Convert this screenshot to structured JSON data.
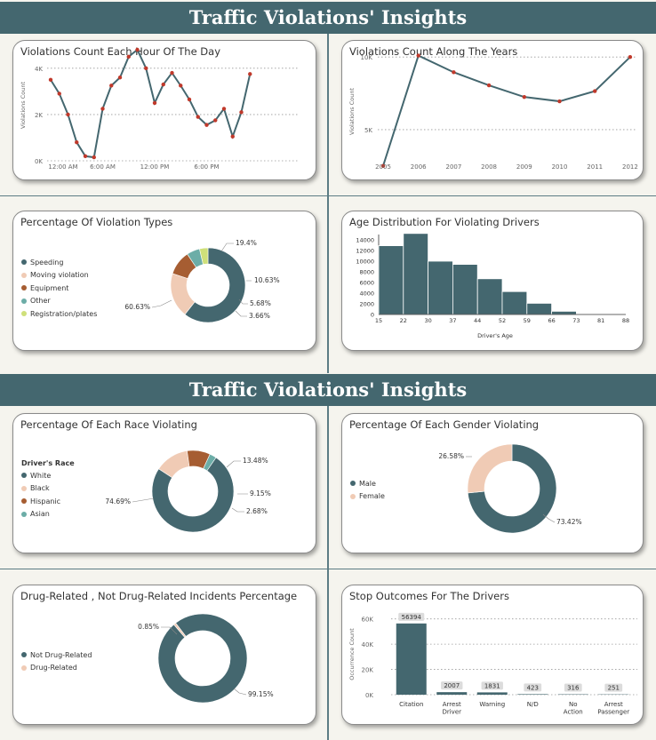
{
  "banners": [
    "Traffic Violations' Insights",
    "Traffic Violations' Insights"
  ],
  "chart_data": [
    {
      "id": "hourly",
      "type": "line",
      "title": "Violations Count Each Hour Of The Day",
      "ylabel": "Violations Count",
      "xticks": [
        "12:00 AM",
        "6:00 AM",
        "12:00 PM",
        "6:00 PM"
      ],
      "yticks": [
        "0K",
        "2K",
        "4K"
      ],
      "ylim": [
        0,
        4800
      ],
      "x": [
        0,
        1,
        2,
        3,
        4,
        5,
        6,
        7,
        8,
        9,
        10,
        11,
        12,
        13,
        14,
        15,
        16,
        17,
        18,
        19,
        20,
        21,
        22,
        23
      ],
      "values": [
        3500,
        2900,
        2000,
        800,
        200,
        150,
        2250,
        3250,
        3600,
        4500,
        4800,
        4000,
        2500,
        3300,
        3800,
        3250,
        2650,
        1900,
        1550,
        1750,
        2250,
        1050,
        2100,
        3750
      ],
      "color": "#44676f",
      "marker_color": "#c0392b"
    },
    {
      "id": "yearly",
      "type": "line",
      "title": "Violations Count Along The Years",
      "ylabel": "Violations Count",
      "categories": [
        "2005",
        "2006",
        "2007",
        "2008",
        "2009",
        "2010",
        "2011",
        "2012"
      ],
      "yticks": [
        "5K",
        "10K"
      ],
      "values": [
        2500,
        10100,
        8950,
        8050,
        7250,
        6950,
        7650,
        10000
      ],
      "ylim": [
        2000,
        10500
      ],
      "color": "#44676f",
      "marker_color": "#c0392b"
    },
    {
      "id": "violation_types",
      "type": "pie",
      "title": "Percentage Of Violation Types",
      "labels": [
        "Speeding",
        "Moving violation",
        "Equipment",
        "Other",
        "Registration/plates"
      ],
      "values": [
        60.63,
        19.4,
        10.63,
        5.68,
        3.66
      ],
      "value_labels": [
        "60.63%",
        "19.4%",
        "10.63%",
        "5.68%",
        "3.66%"
      ],
      "colors": [
        "#44676f",
        "#f0cbb5",
        "#a65d32",
        "#6cada7",
        "#cfe07a"
      ]
    },
    {
      "id": "age",
      "type": "bar",
      "title": "Age Distribution For Violating Drivers",
      "xlabel": "Driver's Age",
      "xticks": [
        "15",
        "22",
        "30",
        "37",
        "44",
        "52",
        "59",
        "66",
        "73",
        "81",
        "88"
      ],
      "yticks": [
        "0",
        "2000",
        "4000",
        "6000",
        "8000",
        "10000",
        "12000",
        "14000"
      ],
      "ylim": [
        0,
        15000
      ],
      "values": [
        12900,
        15200,
        10000,
        9400,
        6700,
        4300,
        2100,
        600,
        100,
        50
      ],
      "color": "#44676f"
    },
    {
      "id": "race",
      "type": "pie",
      "title": "Percentage Of Each Race Violating",
      "legend_title": "Driver's Race",
      "labels": [
        "White",
        "Black",
        "Hispanic",
        "Asian"
      ],
      "values": [
        74.69,
        13.48,
        9.15,
        2.68
      ],
      "value_labels": [
        "74.69%",
        "13.48%",
        "9.15%",
        "2.68%"
      ],
      "colors": [
        "#44676f",
        "#f0cbb5",
        "#a65d32",
        "#6cada7"
      ]
    },
    {
      "id": "gender",
      "type": "pie",
      "title": "Percentage Of Each Gender Violating",
      "labels": [
        "Male",
        "Female"
      ],
      "values": [
        73.42,
        26.58
      ],
      "value_labels": [
        "73.42%",
        "26.58%"
      ],
      "colors": [
        "#44676f",
        "#f0cbb5"
      ]
    },
    {
      "id": "drug",
      "type": "pie",
      "title": "Drug-Related , Not Drug-Related Incidents Percentage",
      "labels": [
        "Not Drug-Related",
        "Drug-Related"
      ],
      "values": [
        99.15,
        0.85
      ],
      "value_labels": [
        "99.15%",
        "0.85%"
      ],
      "colors": [
        "#44676f",
        "#f0cbb5"
      ]
    },
    {
      "id": "outcomes",
      "type": "bar",
      "title": "Stop Outcomes For The Drivers",
      "ylabel": "Occurrence Count",
      "categories": [
        "Citation",
        "Arrest Driver",
        "Warning",
        "N/D",
        "No Action",
        "Arrest Passenger"
      ],
      "yticks": [
        "0K",
        "20K",
        "40K",
        "60K"
      ],
      "ylim": [
        0,
        64000
      ],
      "values": [
        56394,
        2007,
        1831,
        423,
        316,
        251
      ],
      "value_labels": [
        "56394",
        "2007",
        "1831",
        "423",
        "316",
        "251"
      ],
      "color": "#44676f"
    }
  ]
}
